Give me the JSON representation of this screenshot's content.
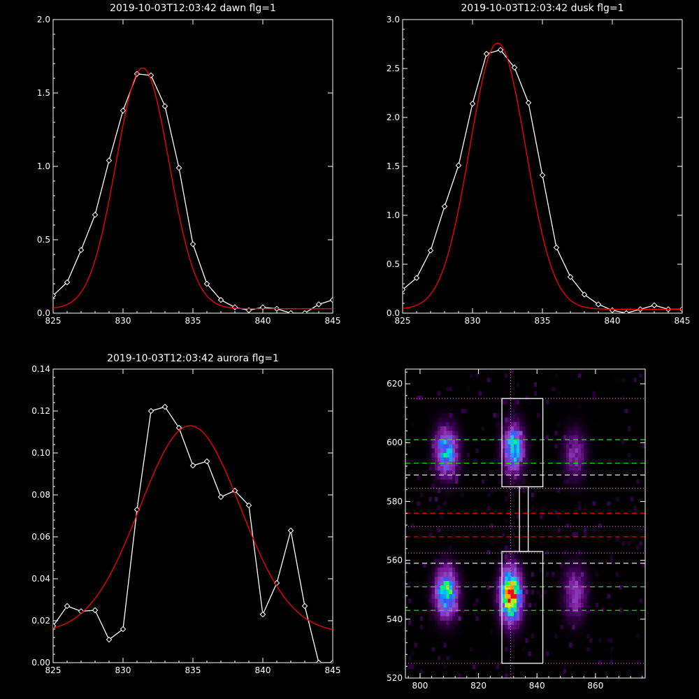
{
  "chart_data": [
    {
      "type": "line",
      "title": "2019-10-03T12:03:42 dawn flg=1",
      "xlim": [
        825,
        845
      ],
      "ylim": [
        0,
        2
      ],
      "xticks": [
        "825",
        "830",
        "835",
        "840",
        "845"
      ],
      "yticks": [
        "0.0",
        "0.5",
        "1.0",
        "1.5",
        "2.0"
      ],
      "series": [
        {
          "color": "#ffffff",
          "marker": "diamond",
          "x": [
            825,
            826,
            827,
            828,
            829,
            830,
            831,
            832,
            833,
            834,
            835,
            836,
            837,
            838,
            839,
            840,
            841,
            842,
            843,
            844,
            845
          ],
          "y": [
            0.12,
            0.21,
            0.43,
            0.67,
            1.04,
            1.38,
            1.63,
            1.62,
            1.41,
            0.99,
            0.47,
            0.2,
            0.09,
            0.04,
            0.02,
            0.04,
            0.03,
            0.0,
            0.0,
            0.06,
            0.09
          ]
        },
        {
          "color": "#ff0000",
          "model": "gaussian",
          "amplitude": 1.64,
          "center": 831.4,
          "sigma": 1.9,
          "offset": 0.03
        }
      ]
    },
    {
      "type": "line",
      "title": "2019-10-03T12:03:42 dusk flg=1",
      "xlim": [
        825,
        845
      ],
      "ylim": [
        0,
        3
      ],
      "xticks": [
        "825",
        "830",
        "835",
        "840",
        "845"
      ],
      "yticks": [
        "0.0",
        "0.5",
        "1.0",
        "1.5",
        "2.0",
        "2.5",
        "3.0"
      ],
      "series": [
        {
          "color": "#ffffff",
          "marker": "diamond",
          "x": [
            825,
            826,
            827,
            828,
            829,
            830,
            831,
            832,
            833,
            834,
            835,
            836,
            837,
            838,
            839,
            840,
            841,
            842,
            843,
            844,
            845
          ],
          "y": [
            0.24,
            0.36,
            0.64,
            1.09,
            1.51,
            2.14,
            2.65,
            2.69,
            2.51,
            2.15,
            1.41,
            0.67,
            0.37,
            0.19,
            0.09,
            0.03,
            0.0,
            0.04,
            0.08,
            0.04,
            0.04
          ]
        },
        {
          "color": "#ff0000",
          "model": "gaussian",
          "amplitude": 2.72,
          "center": 831.8,
          "sigma": 2.0,
          "offset": 0.04
        }
      ]
    },
    {
      "type": "line",
      "title": "2019-10-03T12:03:42 aurora flg=1",
      "xlim": [
        825,
        845
      ],
      "ylim": [
        0,
        0.14
      ],
      "xticks": [
        "825",
        "830",
        "835",
        "840",
        "845"
      ],
      "yticks": [
        "0.00",
        "0.02",
        "0.04",
        "0.06",
        "0.08",
        "0.10",
        "0.12",
        "0.14"
      ],
      "series": [
        {
          "color": "#ffffff",
          "marker": "diamond",
          "x": [
            825,
            826,
            827,
            828,
            829,
            830,
            831,
            832,
            833,
            834,
            835,
            836,
            837,
            838,
            839,
            840,
            841,
            842,
            843,
            844,
            845
          ],
          "y": [
            0.0175,
            0.027,
            0.0245,
            0.025,
            0.011,
            0.016,
            0.073,
            0.12,
            0.122,
            0.112,
            0.094,
            0.096,
            0.079,
            0.082,
            0.075,
            0.023,
            0.038,
            0.063,
            0.027,
            0.0,
            0.0
          ]
        },
        {
          "color": "#ff0000",
          "model": "gaussian",
          "amplitude": 0.099,
          "center": 834.8,
          "sigma": 3.6,
          "offset": 0.014
        }
      ]
    },
    {
      "type": "heatmap",
      "xlim": [
        795,
        877
      ],
      "ylim": [
        520,
        625
      ],
      "xticks": [
        "800",
        "820",
        "840",
        "860"
      ],
      "yticks": [
        "520",
        "540",
        "560",
        "580",
        "600",
        "620"
      ],
      "colormap": [
        "#000000",
        "#3a0052",
        "#7f1f9f",
        "#8f52c8",
        "#3a4fff",
        "#00c8ff",
        "#00ff5a",
        "#e0ff00",
        "#ffb000",
        "#ff0000"
      ],
      "blobs": [
        {
          "x": 809,
          "y": 549,
          "sx": 2.6,
          "sy": 5.5,
          "peak": 0.66
        },
        {
          "x": 809,
          "y": 597,
          "sx": 2.6,
          "sy": 5.5,
          "peak": 0.56
        },
        {
          "x": 831,
          "y": 548,
          "sx": 2.4,
          "sy": 6.0,
          "peak": 1.0
        },
        {
          "x": 832,
          "y": 598,
          "sx": 2.4,
          "sy": 5.5,
          "peak": 0.6
        },
        {
          "x": 853,
          "y": 549,
          "sx": 2.6,
          "sy": 6.0,
          "peak": 0.3
        },
        {
          "x": 853,
          "y": 596,
          "sx": 2.6,
          "sy": 5.5,
          "peak": 0.24
        }
      ],
      "boxes": [
        {
          "x0": 828,
          "x1": 842,
          "y0": 525,
          "y1": 563
        },
        {
          "x0": 828,
          "x1": 842,
          "y0": 585,
          "y1": 615
        },
        {
          "x0": 834,
          "x1": 837,
          "y0": 563,
          "y1": 585
        }
      ],
      "vline": {
        "x": 831,
        "color": "#ff55ff"
      },
      "hlines": [
        {
          "y": 525,
          "color": "#ff55ff",
          "style": "dotted"
        },
        {
          "y": 615,
          "color": "#ff55ff",
          "style": "dotted"
        },
        {
          "y": 562.5,
          "color": "#ff55ff",
          "style": "dotted"
        },
        {
          "y": 584.5,
          "color": "#ff55ff",
          "style": "dotted"
        },
        {
          "y": 571.5,
          "color": "#ff55ff",
          "style": "dotted"
        },
        {
          "y": 543,
          "color": "#33dd33",
          "style": "dashed"
        },
        {
          "y": 551,
          "color": "#33dd33",
          "style": "dashed"
        },
        {
          "y": 593,
          "color": "#33dd33",
          "style": "dashed"
        },
        {
          "y": 601,
          "color": "#33dd33",
          "style": "dashed"
        },
        {
          "y": 559,
          "color": "#ffffff",
          "style": "dashed"
        },
        {
          "y": 589,
          "color": "#ffffff",
          "style": "dashed"
        },
        {
          "y": 568,
          "color": "#ff0000",
          "style": "dashed"
        },
        {
          "y": 576,
          "color": "#ff0000",
          "style": "dashed"
        }
      ]
    }
  ]
}
